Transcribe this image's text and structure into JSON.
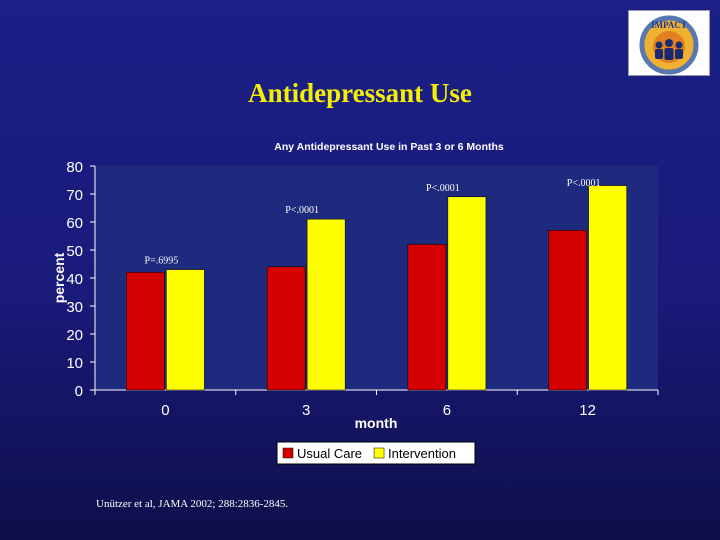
{
  "slide": {
    "title": "Antidepressant Use",
    "citation": "Unützer et al, JAMA 2002; 288:2836-2845.",
    "logo_text": "IMPACT"
  },
  "colors": {
    "background": "#1b1f86",
    "title": "#f4f000",
    "plot_area": "#1d2a7e",
    "usual_care": "#d40000",
    "intervention": "#ffff00"
  },
  "chart_data": {
    "type": "bar",
    "title": "Any Antidepressant Use in Past 3 or 6 Months",
    "xlabel": "month",
    "ylabel": "percent",
    "categories": [
      "0",
      "3",
      "6",
      "12"
    ],
    "ylim": [
      0,
      80
    ],
    "yticks": [
      0,
      10,
      20,
      30,
      40,
      50,
      60,
      70,
      80
    ],
    "grid": false,
    "legend_position": "bottom",
    "series": [
      {
        "name": "Usual Care",
        "color": "#d40000",
        "values": [
          42,
          44,
          52,
          57
        ]
      },
      {
        "name": "Intervention",
        "color": "#ffff00",
        "values": [
          43,
          61,
          69,
          73
        ]
      }
    ],
    "annotations": [
      {
        "category": "0",
        "text": "P=.6995"
      },
      {
        "category": "3",
        "text": "P<.0001"
      },
      {
        "category": "6",
        "text": "P<.0001"
      },
      {
        "category": "12",
        "text": "P<.0001"
      }
    ]
  }
}
